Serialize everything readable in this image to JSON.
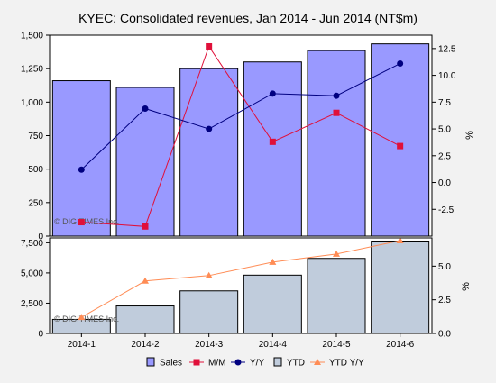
{
  "chart_data": [
    {
      "id": "upper",
      "type": "bar+line",
      "title": "KYEC: Consolidated revenues, Jan 2014 - Jun 2014 (NT$m)",
      "categories": [
        "2014-1",
        "2014-2",
        "2014-3",
        "2014-4",
        "2014-5",
        "2014-6"
      ],
      "series": [
        {
          "name": "Sales",
          "kind": "bar",
          "axis": "left",
          "color": "#9999ff",
          "values": [
            1160,
            1110,
            1250,
            1300,
            1385,
            1435
          ]
        },
        {
          "name": "M/M",
          "kind": "line",
          "axis": "right",
          "marker": "square",
          "color": "#e0103a",
          "values": [
            -3.7,
            -4.1,
            12.7,
            3.8,
            6.5,
            3.4
          ]
        },
        {
          "name": "Y/Y",
          "kind": "line",
          "axis": "right",
          "marker": "circle",
          "color": "#000080",
          "values": [
            1.2,
            6.9,
            5.0,
            8.3,
            8.1,
            11.1
          ]
        }
      ],
      "left_axis": {
        "ylim": [
          0,
          1500
        ],
        "ticks": [
          0,
          250,
          500,
          750,
          1000,
          1250,
          1500
        ],
        "tick_labels": [
          "0",
          "250",
          "500",
          "750",
          "1,000",
          "1,250",
          "1,500"
        ]
      },
      "right_axis": {
        "label": "%",
        "ylim": [
          -5,
          13.75
        ],
        "ticks": [
          -2.5,
          0,
          2.5,
          5,
          7.5,
          10,
          12.5
        ],
        "tick_labels": [
          "-2.5",
          "0.0",
          "2.5",
          "5.0",
          "7.5",
          "10.0",
          "12.5"
        ]
      },
      "watermark": "© DIGITIMES Inc."
    },
    {
      "id": "lower",
      "type": "bar+line",
      "categories": [
        "2014-1",
        "2014-2",
        "2014-3",
        "2014-4",
        "2014-5",
        "2014-6"
      ],
      "series": [
        {
          "name": "YTD",
          "kind": "bar",
          "axis": "left",
          "color": "#c0ccdc",
          "values": [
            1160,
            2270,
            3520,
            4820,
            6205,
            7640
          ]
        },
        {
          "name": "YTD Y/Y",
          "kind": "line",
          "axis": "right",
          "marker": "triangle",
          "color": "#ff8c55",
          "values": [
            1.2,
            3.9,
            4.3,
            5.3,
            5.9,
            6.9
          ]
        }
      ],
      "left_axis": {
        "ylim": [
          0,
          7900
        ],
        "ticks": [
          0,
          2500,
          5000,
          7500
        ],
        "tick_labels": [
          "0",
          "2,500",
          "5,000",
          "7,500"
        ]
      },
      "right_axis": {
        "label": "%",
        "ylim": [
          0,
          7.1
        ],
        "ticks": [
          0,
          2.5,
          5
        ],
        "tick_labels": [
          "0.0",
          "2.5",
          "5.0"
        ]
      },
      "watermark": "© DIGITIMES Inc."
    }
  ],
  "legend": {
    "placement": "bottom",
    "items": [
      {
        "label": "Sales",
        "marker": "box",
        "color": "#9999ff"
      },
      {
        "label": "M/M",
        "marker": "square-line",
        "color": "#e0103a"
      },
      {
        "label": "Y/Y",
        "marker": "circle-line",
        "color": "#000080"
      },
      {
        "label": "YTD",
        "marker": "box",
        "color": "#c0ccdc"
      },
      {
        "label": "YTD Y/Y",
        "marker": "triangle-line",
        "color": "#ff8c55"
      }
    ]
  },
  "colors": {
    "background": "#f2f2f2",
    "plot_background": "#ffffff",
    "axis": "#000000",
    "bar_border": "#000000"
  }
}
